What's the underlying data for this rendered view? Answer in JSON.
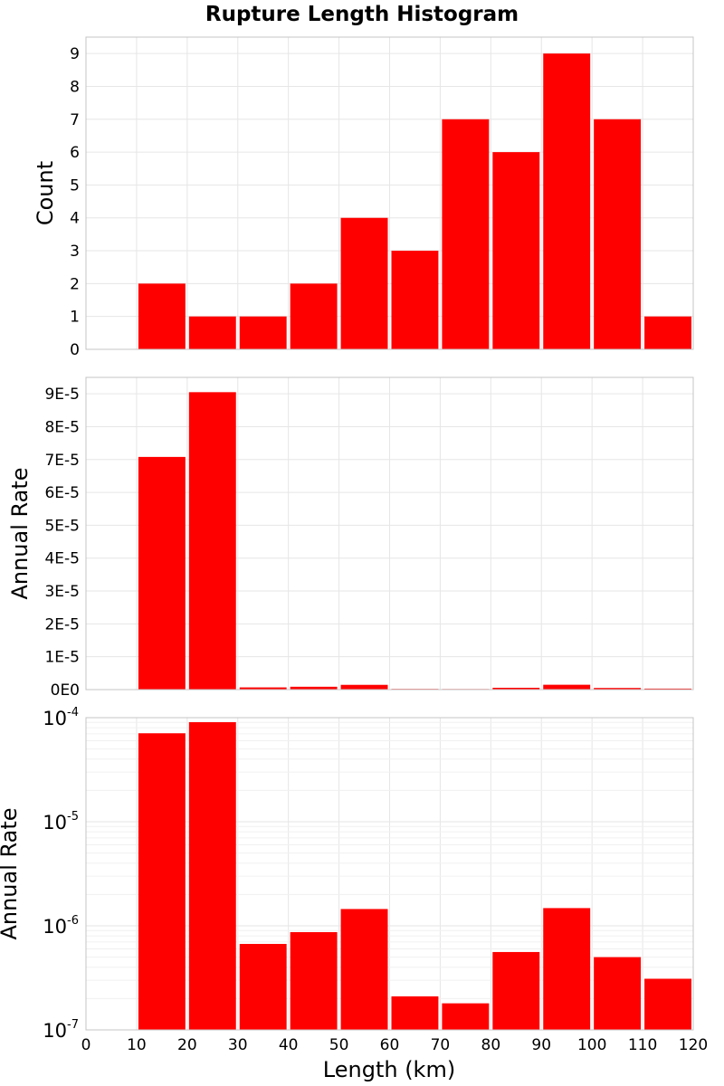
{
  "title": "Rupture Length Histogram",
  "xlabel": "Length (km)",
  "colors": {
    "bar": "#ff0000",
    "grid": "#e6e6e6",
    "frame": "#c4c4c4"
  },
  "chart_data": [
    {
      "type": "bar",
      "title": "Rupture Length Histogram",
      "ylabel": "Count",
      "xlim": [
        0,
        120
      ],
      "ylim": [
        0,
        9.5
      ],
      "yscale": "linear",
      "grid": true,
      "bin_width": 10,
      "bin_starts": [
        10,
        20,
        30,
        40,
        50,
        60,
        70,
        80,
        90,
        100,
        110
      ],
      "values": [
        2,
        1,
        1,
        2,
        4,
        3,
        7,
        6,
        9,
        7,
        1
      ],
      "yticks": [
        0,
        1,
        2,
        3,
        4,
        5,
        6,
        7,
        8,
        9
      ],
      "ytick_labels": [
        "0",
        "1",
        "2",
        "3",
        "4",
        "5",
        "6",
        "7",
        "8",
        "9"
      ],
      "color": "#ff0000"
    },
    {
      "type": "bar",
      "ylabel": "Annual Rate",
      "xlim": [
        0,
        120
      ],
      "ylim": [
        0,
        9.5e-05
      ],
      "yscale": "linear",
      "grid": true,
      "bin_width": 10,
      "bin_starts": [
        10,
        20,
        30,
        40,
        50,
        60,
        70,
        80,
        90,
        100,
        110
      ],
      "values": [
        7.08e-05,
        9.05e-05,
        6.7e-07,
        8.7e-07,
        1.45e-06,
        2.1e-07,
        1.8e-07,
        5.6e-07,
        1.48e-06,
        5e-07,
        3.1e-07
      ],
      "yticks": [
        0,
        1e-05,
        2e-05,
        3e-05,
        4e-05,
        5e-05,
        6e-05,
        7e-05,
        8e-05,
        9e-05
      ],
      "ytick_labels": [
        "0E0",
        "1E-5",
        "2E-5",
        "3E-5",
        "4E-5",
        "5E-5",
        "6E-5",
        "7E-5",
        "8E-5",
        "9E-5"
      ],
      "color": "#ff0000"
    },
    {
      "type": "bar",
      "ylabel": "Annual Rate",
      "xlabel": "Length (km)",
      "xlim": [
        0,
        120
      ],
      "ylim": [
        1e-07,
        0.0001
      ],
      "yscale": "log",
      "grid": true,
      "bin_width": 10,
      "bin_starts": [
        10,
        20,
        30,
        40,
        50,
        60,
        70,
        80,
        90,
        100,
        110
      ],
      "values": [
        7.08e-05,
        9.05e-05,
        6.7e-07,
        8.7e-07,
        1.45e-06,
        2.1e-07,
        1.8e-07,
        5.6e-07,
        1.48e-06,
        5e-07,
        3.1e-07
      ],
      "yticks": [
        1e-07,
        1e-06,
        1e-05,
        0.0001
      ],
      "ytick_bases": [
        "10",
        "10",
        "10",
        "10"
      ],
      "ytick_exponents": [
        "-7",
        "-6",
        "-5",
        "-4"
      ],
      "xticks": [
        0,
        10,
        20,
        30,
        40,
        50,
        60,
        70,
        80,
        90,
        100,
        110,
        120
      ],
      "xtick_labels": [
        "0",
        "10",
        "20",
        "30",
        "40",
        "50",
        "60",
        "70",
        "80",
        "90",
        "100",
        "110",
        "120"
      ],
      "color": "#ff0000"
    }
  ]
}
